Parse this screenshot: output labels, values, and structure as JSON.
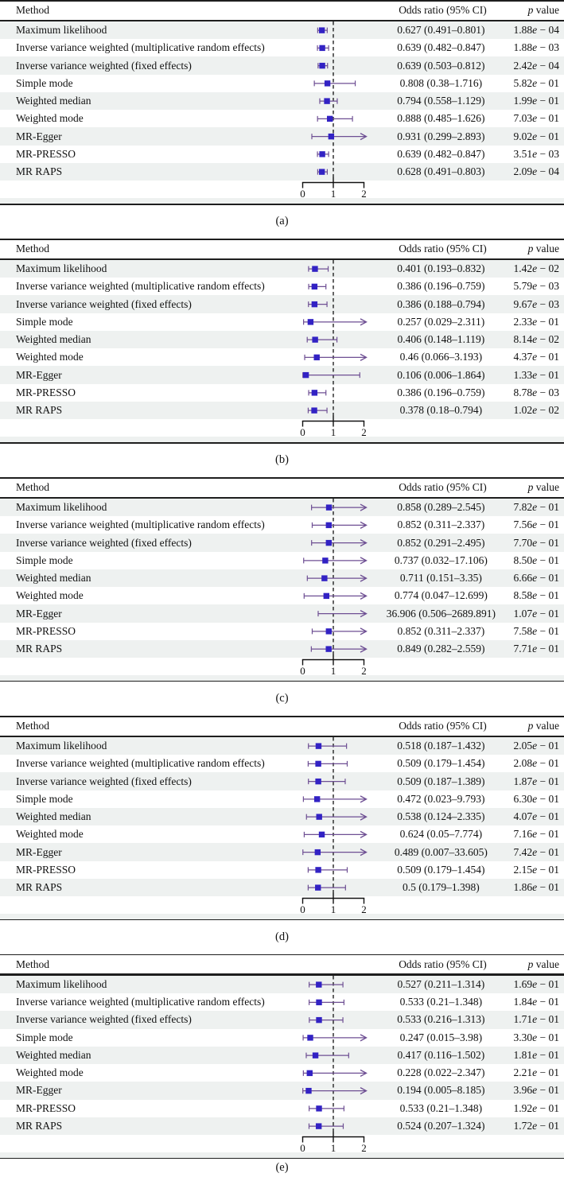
{
  "header": {
    "method": "Method",
    "or": "Odds ratio (95% CI)",
    "p_italic": "p",
    "p_rest": " value"
  },
  "style": {
    "marker_color": "#3222c4",
    "ci_color": "#6e4f93",
    "stripe_color": "#eef1f0",
    "rule_color": "#1e1e1e",
    "dashed_line_color": "#222222",
    "axis_color": "#111111"
  },
  "chart_data": [
    {
      "type": "forest",
      "panel_label": "(a)",
      "id": "a",
      "columns": [
        "Method",
        "Odds ratio (95% CI)",
        "p value"
      ],
      "x_ticks": [
        0,
        1,
        2
      ],
      "xlim": [
        0,
        2.12
      ],
      "reference_line": 1,
      "rows": [
        {
          "method": "Maximum likelihood",
          "or": 0.627,
          "lo": 0.491,
          "hi": 0.801,
          "or_text": "0.627 (0.491–0.801)",
          "p_text": "1.88e − 04"
        },
        {
          "method": "Inverse variance weighted (multiplicative random effects)",
          "or": 0.639,
          "lo": 0.482,
          "hi": 0.847,
          "or_text": "0.639 (0.482–0.847)",
          "p_text": "1.88e − 03"
        },
        {
          "method": "Inverse variance weighted (fixed effects)",
          "or": 0.639,
          "lo": 0.503,
          "hi": 0.812,
          "or_text": "0.639 (0.503–0.812)",
          "p_text": "2.42e − 04"
        },
        {
          "method": "Simple mode",
          "or": 0.808,
          "lo": 0.38,
          "hi": 1.716,
          "or_text": "0.808 (0.38–1.716)",
          "p_text": "5.82e − 01"
        },
        {
          "method": "Weighted median",
          "or": 0.794,
          "lo": 0.558,
          "hi": 1.129,
          "or_text": "0.794 (0.558–1.129)",
          "p_text": "1.99e − 01"
        },
        {
          "method": "Weighted mode",
          "or": 0.888,
          "lo": 0.485,
          "hi": 1.626,
          "or_text": "0.888 (0.485–1.626)",
          "p_text": "7.03e − 01"
        },
        {
          "method": "MR-Egger",
          "or": 0.931,
          "lo": 0.299,
          "hi": 2.893,
          "or_text": "0.931 (0.299–2.893)",
          "p_text": "9.02e − 01"
        },
        {
          "method": "MR-PRESSO",
          "or": 0.639,
          "lo": 0.482,
          "hi": 0.847,
          "or_text": "0.639 (0.482–0.847)",
          "p_text": "3.51e − 03"
        },
        {
          "method": "MR RAPS",
          "or": 0.628,
          "lo": 0.491,
          "hi": 0.803,
          "or_text": "0.628 (0.491–0.803)",
          "p_text": "2.09e − 04"
        }
      ]
    },
    {
      "type": "forest",
      "panel_label": "(b)",
      "id": "b",
      "columns": [
        "Method",
        "Odds ratio (95% CI)",
        "p value"
      ],
      "x_ticks": [
        0,
        1,
        2
      ],
      "xlim": [
        0,
        2.12
      ],
      "reference_line": 1,
      "rows": [
        {
          "method": "Maximum likelihood",
          "or": 0.401,
          "lo": 0.193,
          "hi": 0.832,
          "or_text": "0.401 (0.193–0.832)",
          "p_text": "1.42e − 02"
        },
        {
          "method": "Inverse variance weighted (multiplicative random effects)",
          "or": 0.386,
          "lo": 0.196,
          "hi": 0.759,
          "or_text": "0.386 (0.196–0.759)",
          "p_text": "5.79e − 03"
        },
        {
          "method": "Inverse variance weighted (fixed effects)",
          "or": 0.386,
          "lo": 0.188,
          "hi": 0.794,
          "or_text": "0.386 (0.188–0.794)",
          "p_text": "9.67e − 03"
        },
        {
          "method": "Simple mode",
          "or": 0.257,
          "lo": 0.029,
          "hi": 2.311,
          "or_text": "0.257 (0.029–2.311)",
          "p_text": "2.33e − 01"
        },
        {
          "method": "Weighted median",
          "or": 0.406,
          "lo": 0.148,
          "hi": 1.119,
          "or_text": "0.406 (0.148–1.119)",
          "p_text": "8.14e − 02"
        },
        {
          "method": "Weighted mode",
          "or": 0.46,
          "lo": 0.066,
          "hi": 3.193,
          "or_text": "0.46 (0.066–3.193)",
          "p_text": "4.37e − 01"
        },
        {
          "method": "MR-Egger",
          "or": 0.106,
          "lo": 0.006,
          "hi": 1.864,
          "or_text": "0.106 (0.006–1.864)",
          "p_text": "1.33e − 01"
        },
        {
          "method": "MR-PRESSO",
          "or": 0.386,
          "lo": 0.196,
          "hi": 0.759,
          "or_text": "0.386 (0.196–0.759)",
          "p_text": "8.78e − 03"
        },
        {
          "method": "MR RAPS",
          "or": 0.378,
          "lo": 0.18,
          "hi": 0.794,
          "or_text": "0.378 (0.18–0.794)",
          "p_text": "1.02e − 02"
        }
      ]
    },
    {
      "type": "forest",
      "panel_label": "(c)",
      "id": "c",
      "columns": [
        "Method",
        "Odds ratio (95% CI)",
        "p value"
      ],
      "x_ticks": [
        0,
        1,
        2
      ],
      "xlim": [
        0,
        2.12
      ],
      "reference_line": 1,
      "rows": [
        {
          "method": "Maximum likelihood",
          "or": 0.858,
          "lo": 0.289,
          "hi": 2.545,
          "or_text": "0.858 (0.289–2.545)",
          "p_text": "7.82e − 01"
        },
        {
          "method": "Inverse variance weighted (multiplicative random effects)",
          "or": 0.852,
          "lo": 0.311,
          "hi": 2.337,
          "or_text": "0.852 (0.311–2.337)",
          "p_text": "7.56e − 01"
        },
        {
          "method": "Inverse variance weighted (fixed effects)",
          "or": 0.852,
          "lo": 0.291,
          "hi": 2.495,
          "or_text": "0.852 (0.291–2.495)",
          "p_text": "7.70e − 01"
        },
        {
          "method": "Simple mode",
          "or": 0.737,
          "lo": 0.032,
          "hi": 17.106,
          "or_text": "0.737 (0.032–17.106)",
          "p_text": "8.50e − 01"
        },
        {
          "method": "Weighted median",
          "or": 0.711,
          "lo": 0.151,
          "hi": 3.35,
          "or_text": "0.711 (0.151–3.35)",
          "p_text": "6.66e − 01"
        },
        {
          "method": "Weighted mode",
          "or": 0.774,
          "lo": 0.047,
          "hi": 12.699,
          "or_text": "0.774 (0.047–12.699)",
          "p_text": "8.58e − 01"
        },
        {
          "method": "MR-Egger",
          "or": 36.906,
          "lo": 0.506,
          "hi": 2689.891,
          "or_text": "36.906 (0.506–2689.891)",
          "p_text": "1.07e − 01"
        },
        {
          "method": "MR-PRESSO",
          "or": 0.852,
          "lo": 0.311,
          "hi": 2.337,
          "or_text": "0.852 (0.311–2.337)",
          "p_text": "7.58e − 01"
        },
        {
          "method": "MR RAPS",
          "or": 0.849,
          "lo": 0.282,
          "hi": 2.559,
          "or_text": "0.849 (0.282–2.559)",
          "p_text": "7.71e − 01"
        }
      ]
    },
    {
      "type": "forest",
      "panel_label": "(d)",
      "id": "d",
      "columns": [
        "Method",
        "Odds ratio (95% CI)",
        "p value"
      ],
      "x_ticks": [
        0,
        1,
        2
      ],
      "xlim": [
        0,
        2.12
      ],
      "reference_line": 1,
      "rows": [
        {
          "method": "Maximum likelihood",
          "or": 0.518,
          "lo": 0.187,
          "hi": 1.432,
          "or_text": "0.518 (0.187–1.432)",
          "p_text": "2.05e − 01"
        },
        {
          "method": "Inverse variance weighted (multiplicative random effects)",
          "or": 0.509,
          "lo": 0.179,
          "hi": 1.454,
          "or_text": "0.509 (0.179–1.454)",
          "p_text": "2.08e − 01"
        },
        {
          "method": "Inverse variance weighted (fixed effects)",
          "or": 0.509,
          "lo": 0.187,
          "hi": 1.389,
          "or_text": "0.509 (0.187–1.389)",
          "p_text": "1.87e − 01"
        },
        {
          "method": "Simple mode",
          "or": 0.472,
          "lo": 0.023,
          "hi": 9.793,
          "or_text": "0.472 (0.023–9.793)",
          "p_text": "6.30e − 01"
        },
        {
          "method": "Weighted median",
          "or": 0.538,
          "lo": 0.124,
          "hi": 2.335,
          "or_text": "0.538 (0.124–2.335)",
          "p_text": "4.07e − 01"
        },
        {
          "method": "Weighted mode",
          "or": 0.624,
          "lo": 0.05,
          "hi": 7.774,
          "or_text": "0.624 (0.05–7.774)",
          "p_text": "7.16e − 01"
        },
        {
          "method": "MR-Egger",
          "or": 0.489,
          "lo": 0.007,
          "hi": 33.605,
          "or_text": "0.489 (0.007–33.605)",
          "p_text": "7.42e − 01"
        },
        {
          "method": "MR-PRESSO",
          "or": 0.509,
          "lo": 0.179,
          "hi": 1.454,
          "or_text": "0.509 (0.179–1.454)",
          "p_text": "2.15e − 01"
        },
        {
          "method": "MR RAPS",
          "or": 0.5,
          "lo": 0.179,
          "hi": 1.398,
          "or_text": "0.5 (0.179–1.398)",
          "p_text": "1.86e − 01"
        }
      ]
    },
    {
      "type": "forest",
      "panel_label": "(e)",
      "id": "e",
      "columns": [
        "Method",
        "Odds ratio (95% CI)",
        "p value"
      ],
      "x_ticks": [
        0,
        1,
        2
      ],
      "xlim": [
        0,
        2.12
      ],
      "reference_line": 1,
      "rows": [
        {
          "method": "Maximum likelihood",
          "or": 0.527,
          "lo": 0.211,
          "hi": 1.314,
          "or_text": "0.527 (0.211–1.314)",
          "p_text": "1.69e − 01"
        },
        {
          "method": "Inverse variance weighted (multiplicative random effects)",
          "or": 0.533,
          "lo": 0.21,
          "hi": 1.348,
          "or_text": "0.533 (0.21–1.348)",
          "p_text": "1.84e − 01"
        },
        {
          "method": "Inverse variance weighted (fixed effects)",
          "or": 0.533,
          "lo": 0.216,
          "hi": 1.313,
          "or_text": "0.533 (0.216–1.313)",
          "p_text": "1.71e − 01"
        },
        {
          "method": "Simple mode",
          "or": 0.247,
          "lo": 0.015,
          "hi": 3.98,
          "or_text": "0.247 (0.015–3.98)",
          "p_text": "3.30e − 01"
        },
        {
          "method": "Weighted median",
          "or": 0.417,
          "lo": 0.116,
          "hi": 1.502,
          "or_text": "0.417 (0.116–1.502)",
          "p_text": "1.81e − 01"
        },
        {
          "method": "Weighted mode",
          "or": 0.228,
          "lo": 0.022,
          "hi": 2.347,
          "or_text": "0.228 (0.022–2.347)",
          "p_text": "2.21e − 01"
        },
        {
          "method": "MR-Egger",
          "or": 0.194,
          "lo": 0.005,
          "hi": 8.185,
          "or_text": "0.194 (0.005–8.185)",
          "p_text": "3.96e − 01"
        },
        {
          "method": "MR-PRESSO",
          "or": 0.533,
          "lo": 0.21,
          "hi": 1.348,
          "or_text": "0.533 (0.21–1.348)",
          "p_text": "1.92e − 01"
        },
        {
          "method": "MR RAPS",
          "or": 0.524,
          "lo": 0.207,
          "hi": 1.324,
          "or_text": "0.524 (0.207–1.324)",
          "p_text": "1.72e − 01"
        }
      ]
    }
  ]
}
